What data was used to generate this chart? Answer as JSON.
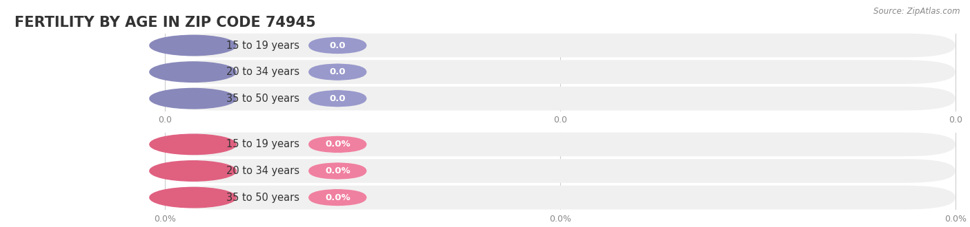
{
  "title": "FERTILITY BY AGE IN ZIP CODE 74945",
  "source": "Source: ZipAtlas.com",
  "top_group": {
    "labels": [
      "15 to 19 years",
      "20 to 34 years",
      "35 to 50 years"
    ],
    "values": [
      0.0,
      0.0,
      0.0
    ],
    "bar_color": "#9999cc",
    "dot_color": "#8888bb",
    "label_value": "0.0",
    "axis_labels": [
      "0.0",
      "0.0",
      "0.0"
    ]
  },
  "bottom_group": {
    "labels": [
      "15 to 19 years",
      "20 to 34 years",
      "35 to 50 years"
    ],
    "values": [
      0.0,
      0.0,
      0.0
    ],
    "bar_color": "#f080a0",
    "dot_color": "#e06080",
    "label_value": "0.0%",
    "axis_labels": [
      "0.0%",
      "0.0%",
      "0.0%"
    ]
  },
  "bg_color": "#ffffff",
  "bar_bg_color": "#f0f0f0",
  "title_fontsize": 15,
  "label_fontsize": 10.5,
  "value_fontsize": 9.5,
  "axis_fontsize": 9,
  "source_fontsize": 8.5,
  "text_color": "#333333",
  "axis_line_color": "#cccccc",
  "tick_color": "#888888"
}
